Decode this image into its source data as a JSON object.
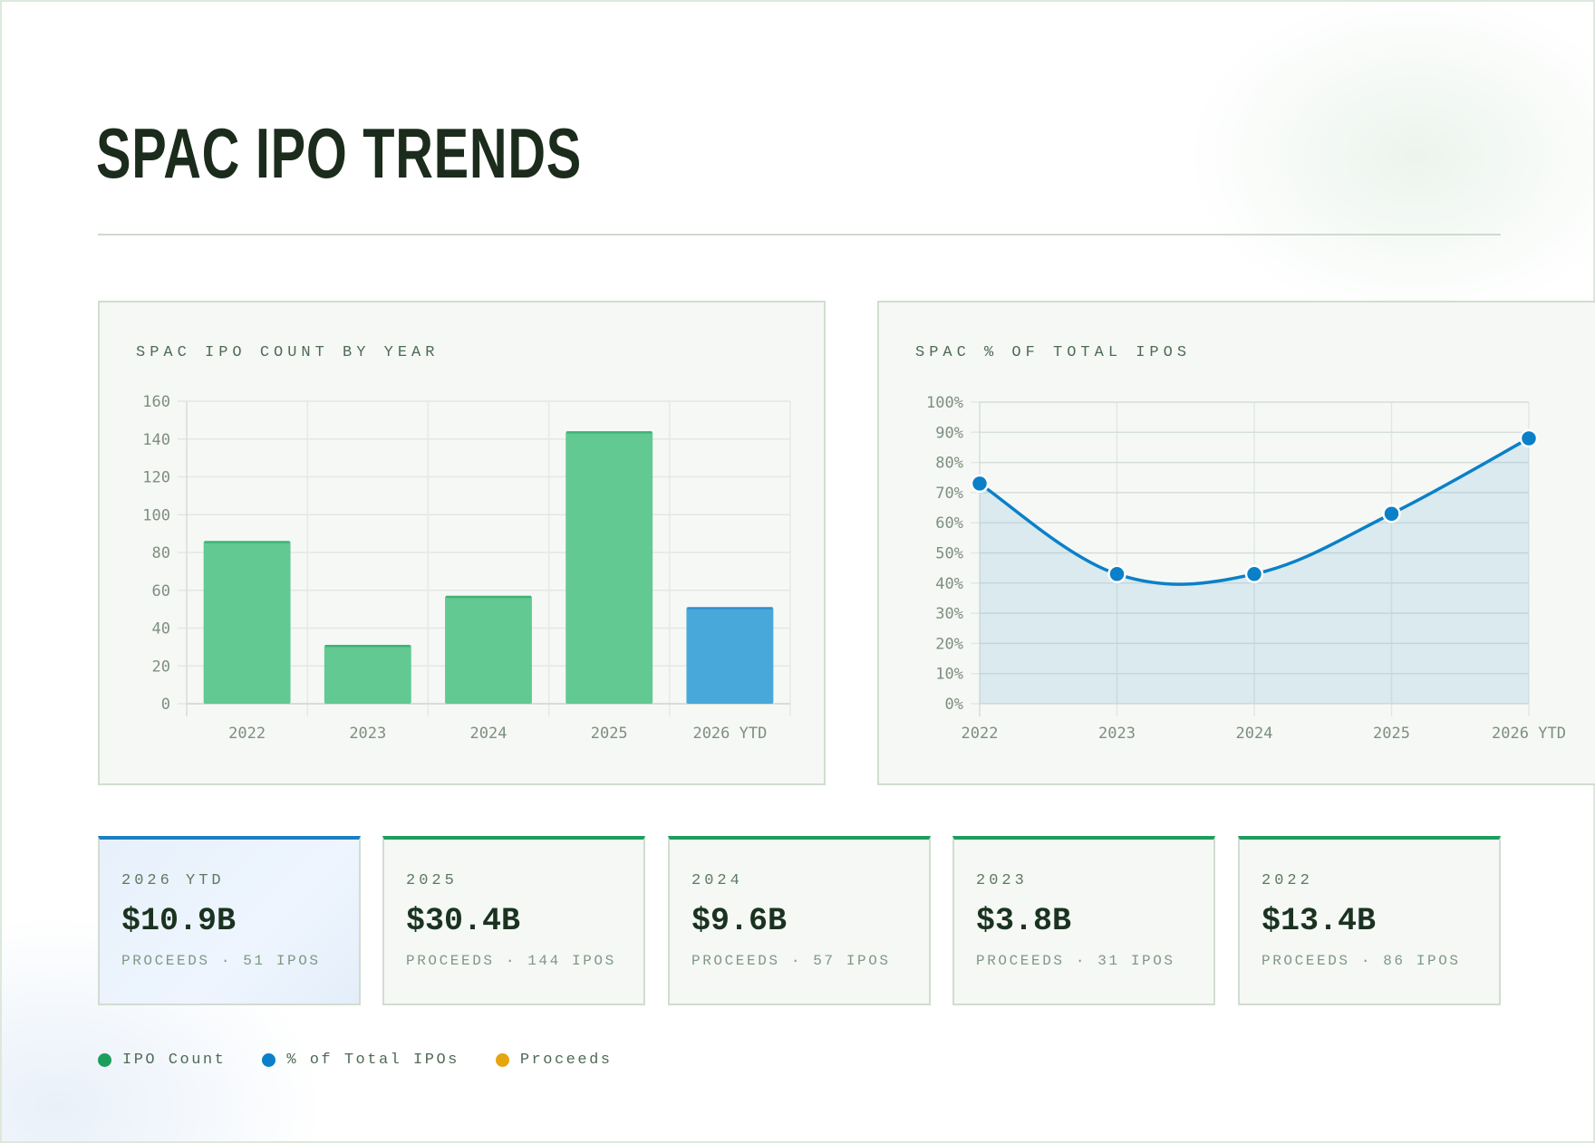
{
  "header": {
    "title": "SPAC IPO TRENDS"
  },
  "colors": {
    "ipo_count": "#1e9e5c",
    "pct_total": "#0b80c8",
    "proceeds": "#e5a50f",
    "bar_green": "#62c993",
    "bar_blue": "#48a8da"
  },
  "charts": {
    "count": {
      "title": "SPAC IPO COUNT BY YEAR"
    },
    "pct": {
      "title": "SPAC % OF TOTAL IPOS"
    }
  },
  "chart_data": [
    {
      "type": "bar",
      "title": "SPAC IPO COUNT BY YEAR",
      "categories": [
        "2022",
        "2023",
        "2024",
        "2025",
        "2026 YTD"
      ],
      "values": [
        86,
        31,
        57,
        144,
        51
      ],
      "highlight_index": 4,
      "xlabel": "",
      "ylabel": "",
      "ylim": [
        0,
        160
      ],
      "yticks": [
        0,
        20,
        40,
        60,
        80,
        100,
        120,
        140,
        160
      ],
      "grid": true
    },
    {
      "type": "area",
      "title": "SPAC % OF TOTAL IPOS",
      "categories": [
        "2022",
        "2023",
        "2024",
        "2025",
        "2026 YTD"
      ],
      "values": [
        73,
        43,
        43,
        63,
        88
      ],
      "unit": "%",
      "xlabel": "",
      "ylabel": "",
      "ylim": [
        0,
        100
      ],
      "yticks": [
        "0%",
        "10%",
        "20%",
        "30%",
        "40%",
        "50%",
        "60%",
        "70%",
        "80%",
        "90%",
        "100%"
      ],
      "grid": true,
      "smooth": true
    }
  ],
  "cards": [
    {
      "year": "2026 YTD",
      "value": "$10.9B",
      "sub": "PROCEEDS · 51 IPOS"
    },
    {
      "year": "2025",
      "value": "$30.4B",
      "sub": "PROCEEDS · 144 IPOS"
    },
    {
      "year": "2024",
      "value": "$9.6B",
      "sub": "PROCEEDS · 57 IPOS"
    },
    {
      "year": "2023",
      "value": "$3.8B",
      "sub": "PROCEEDS · 31 IPOS"
    },
    {
      "year": "2022",
      "value": "$13.4B",
      "sub": "PROCEEDS · 86 IPOS"
    }
  ],
  "legend": [
    {
      "label": "IPO Count",
      "color": "#1e9e5c"
    },
    {
      "label": "% of Total IPOs",
      "color": "#0b80c8"
    },
    {
      "label": "Proceeds",
      "color": "#e5a50f"
    }
  ]
}
